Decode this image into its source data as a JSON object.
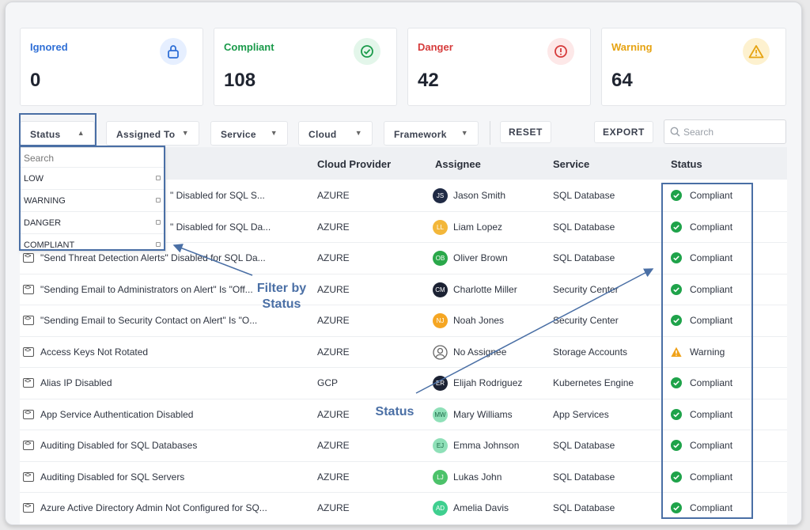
{
  "cards": [
    {
      "label": "Ignored",
      "count": "0",
      "label_color": "#2f6fd6",
      "icon": "lock-icon",
      "badge_bg": "#e6efff",
      "icon_color": "#2f6fd6"
    },
    {
      "label": "Compliant",
      "count": "108",
      "label_color": "#1a9a4a",
      "icon": "check-circle-icon",
      "badge_bg": "#e3f6ea",
      "icon_color": "#1a9a4a"
    },
    {
      "label": "Danger",
      "count": "42",
      "label_color": "#d63b3b",
      "icon": "alert-circle-icon",
      "badge_bg": "#fde8e8",
      "icon_color": "#d63b3b"
    },
    {
      "label": "Warning",
      "count": "64",
      "label_color": "#e6a312",
      "icon": "warning-triangle-icon",
      "badge_bg": "#fdf1cf",
      "icon_color": "#e6a312"
    }
  ],
  "toolbar": {
    "filters": [
      {
        "label": "Status",
        "chevron": "up"
      },
      {
        "label": "Assigned To",
        "chevron": "down"
      },
      {
        "label": "Service",
        "chevron": "down"
      },
      {
        "label": "Cloud",
        "chevron": "down"
      },
      {
        "label": "Framework",
        "chevron": "down"
      }
    ],
    "reset_label": "RESET",
    "export_label": "EXPORT",
    "search_placeholder": "Search"
  },
  "dropdown": {
    "search_placeholder": "Search",
    "options": [
      "LOW",
      "WARNING",
      "DANGER",
      "COMPLIANT"
    ]
  },
  "table": {
    "columns": [
      "Cloud Provider",
      "Assignee",
      "Service",
      "Status"
    ],
    "rows": [
      {
        "name": "\" Disabled for SQL S...",
        "provider": "AZURE",
        "assignee": "Jason Smith",
        "initials": "JS",
        "avatar_color": "#1f2a44",
        "service": "SQL Database",
        "status": "Compliant"
      },
      {
        "name": "\" Disabled for SQL Da...",
        "provider": "AZURE",
        "assignee": "Liam Lopez",
        "initials": "LL",
        "avatar_color": "#f3b73a",
        "service": "SQL Database",
        "status": "Compliant"
      },
      {
        "name": "\"Send Threat Detection Alerts\" Disabled for SQL Da...",
        "provider": "AZURE",
        "assignee": "Oliver Brown",
        "initials": "OB",
        "avatar_color": "#2aa84a",
        "service": "SQL Database",
        "status": "Compliant"
      },
      {
        "name": "\"Sending Email to Administrators on Alert\" Is \"Off...",
        "provider": "AZURE",
        "assignee": "Charlotte Miller",
        "initials": "CM",
        "avatar_color": "#1c2233",
        "service": "Security Center",
        "status": "Compliant"
      },
      {
        "name": "\"Sending Email to Security Contact on Alert\" Is \"O...",
        "provider": "AZURE",
        "assignee": "Noah Jones",
        "initials": "NJ",
        "avatar_color": "#f5a623",
        "service": "Security Center",
        "status": "Compliant"
      },
      {
        "name": "Access Keys Not Rotated",
        "provider": "AZURE",
        "assignee": "No Assignee",
        "initials": "",
        "avatar_color": "",
        "service": "Storage Accounts",
        "status": "Warning"
      },
      {
        "name": "Alias IP Disabled",
        "provider": "GCP",
        "assignee": "Elijah Rodriguez",
        "initials": "ER",
        "avatar_color": "#1c2233",
        "service": "Kubernetes Engine",
        "status": "Compliant"
      },
      {
        "name": "App Service Authentication Disabled",
        "provider": "AZURE",
        "assignee": "Mary Williams",
        "initials": "MW",
        "avatar_color": "#8fe0b8",
        "service": "App Services",
        "status": "Compliant"
      },
      {
        "name": "Auditing Disabled for SQL Databases",
        "provider": "AZURE",
        "assignee": "Emma Johnson",
        "initials": "EJ",
        "avatar_color": "#8fe0b8",
        "service": "SQL Database",
        "status": "Compliant"
      },
      {
        "name": "Auditing Disabled for SQL Servers",
        "provider": "AZURE",
        "assignee": "Lukas John",
        "initials": "LJ",
        "avatar_color": "#4cc26a",
        "service": "SQL Database",
        "status": "Compliant"
      },
      {
        "name": "Azure Active Directory Admin Not Configured for SQ...",
        "provider": "AZURE",
        "assignee": "Amelia Davis",
        "initials": "AD",
        "avatar_color": "#3fcf8f",
        "service": "SQL Database",
        "status": "Compliant"
      }
    ]
  },
  "annotations": {
    "filter_note": "Filter by Status",
    "status_note": "Status",
    "color": "#4a6fa5"
  },
  "status_colors": {
    "Compliant": "#1fa34a",
    "Warning": "#f0a21a"
  }
}
